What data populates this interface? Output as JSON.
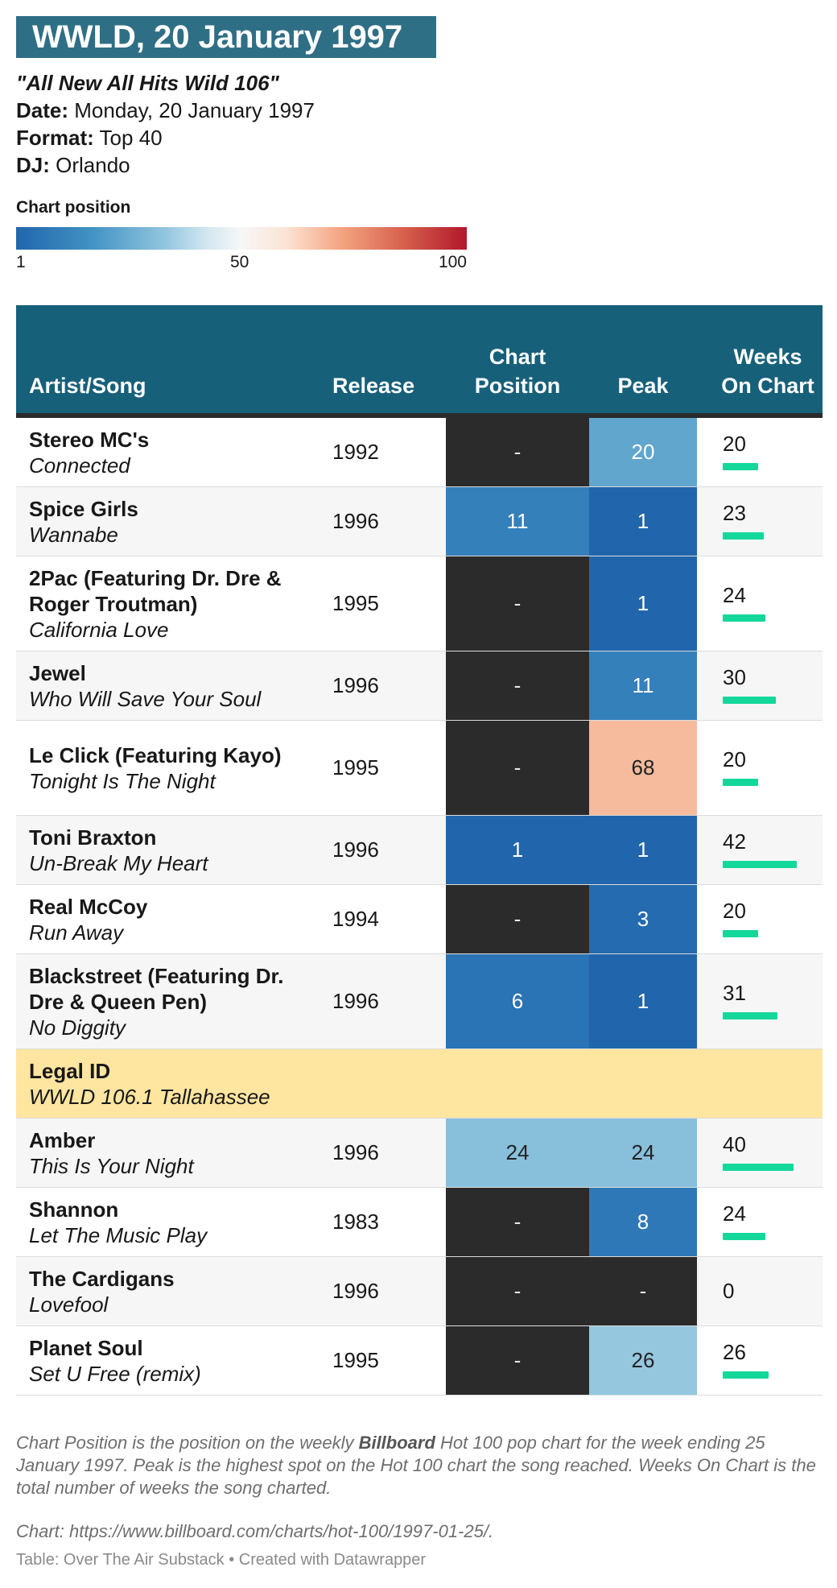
{
  "title": "WWLD, 20 January 1997",
  "meta": {
    "slogan": "\"All New All Hits Wild 106\"",
    "date_label": "Date:",
    "date": "Monday, 20 January 1997",
    "format_label": "Format:",
    "format": "Top 40",
    "dj_label": "DJ:",
    "dj": "Orlando"
  },
  "legend": {
    "title": "Chart position",
    "ticks": [
      "1",
      "50",
      "100"
    ]
  },
  "colors": {
    "header_bg": "#17607a",
    "title_bg": "#2f6f86",
    "na_cell": "#2b2b2b",
    "legal_id_bg": "#fee5a0",
    "weeks_bar": "#14d89a"
  },
  "chart_data": {
    "type": "table",
    "columns": [
      "Artist/Song",
      "Release",
      "Chart Position",
      "Peak",
      "Weeks On Chart"
    ],
    "color_scale": {
      "title": "Chart position",
      "min": 1,
      "mid": 50,
      "max": 100
    },
    "rows": [
      {
        "artist": "Stereo MC's",
        "song": "Connected",
        "release": "1992",
        "position": "-",
        "peak": "20",
        "weeks": "20"
      },
      {
        "artist": "Spice Girls",
        "song": "Wannabe",
        "release": "1996",
        "position": "11",
        "peak": "1",
        "weeks": "23"
      },
      {
        "artist": "2Pac (Featuring Dr. Dre & Roger Troutman)",
        "song": "California Love",
        "release": "1995",
        "position": "-",
        "peak": "1",
        "weeks": "24"
      },
      {
        "artist": "Jewel",
        "song": "Who Will Save Your Soul",
        "release": "1996",
        "position": "-",
        "peak": "11",
        "weeks": "30"
      },
      {
        "artist": "Le Click (Featuring Kayo)",
        "song": "Tonight Is The Night",
        "release": "1995",
        "position": "-",
        "peak": "68",
        "weeks": "20"
      },
      {
        "artist": "Toni Braxton",
        "song": "Un-Break My Heart",
        "release": "1996",
        "position": "1",
        "peak": "1",
        "weeks": "42"
      },
      {
        "artist": "Real McCoy",
        "song": "Run Away",
        "release": "1994",
        "position": "-",
        "peak": "3",
        "weeks": "20"
      },
      {
        "artist": "Blackstreet (Featuring Dr. Dre & Queen Pen)",
        "song": "No Diggity",
        "release": "1996",
        "position": "6",
        "peak": "1",
        "weeks": "31"
      },
      {
        "artist": "Legal ID",
        "song": "WWLD 106.1 Tallahassee",
        "release": "",
        "position": "",
        "peak": "",
        "weeks": "",
        "legal_id": true
      },
      {
        "artist": "Amber",
        "song": "This Is Your Night",
        "release": "1996",
        "position": "24",
        "peak": "24",
        "weeks": "40"
      },
      {
        "artist": "Shannon",
        "song": "Let The Music Play",
        "release": "1983",
        "position": "-",
        "peak": "8",
        "weeks": "24"
      },
      {
        "artist": "The Cardigans",
        "song": "Lovefool",
        "release": "1996",
        "position": "-",
        "peak": "-",
        "weeks": "0"
      },
      {
        "artist": "Planet Soul",
        "song": "Set U Free (remix)",
        "release": "1995",
        "position": "-",
        "peak": "26",
        "weeks": "26"
      }
    ]
  },
  "notes": {
    "pre": "Chart Position is the position on the weekly ",
    "bold": "Billboard",
    "post": " Hot 100 pop chart for the week ending 25 January 1997. Peak is the highest spot on the Hot 100 chart the song reached. Weeks On Chart is the total number of weeks the song charted.",
    "source": "Chart: https://www.billboard.com/charts/hot-100/1997-01-25/.",
    "credit": "Table: Over The Air Substack • Created with Datawrapper"
  }
}
